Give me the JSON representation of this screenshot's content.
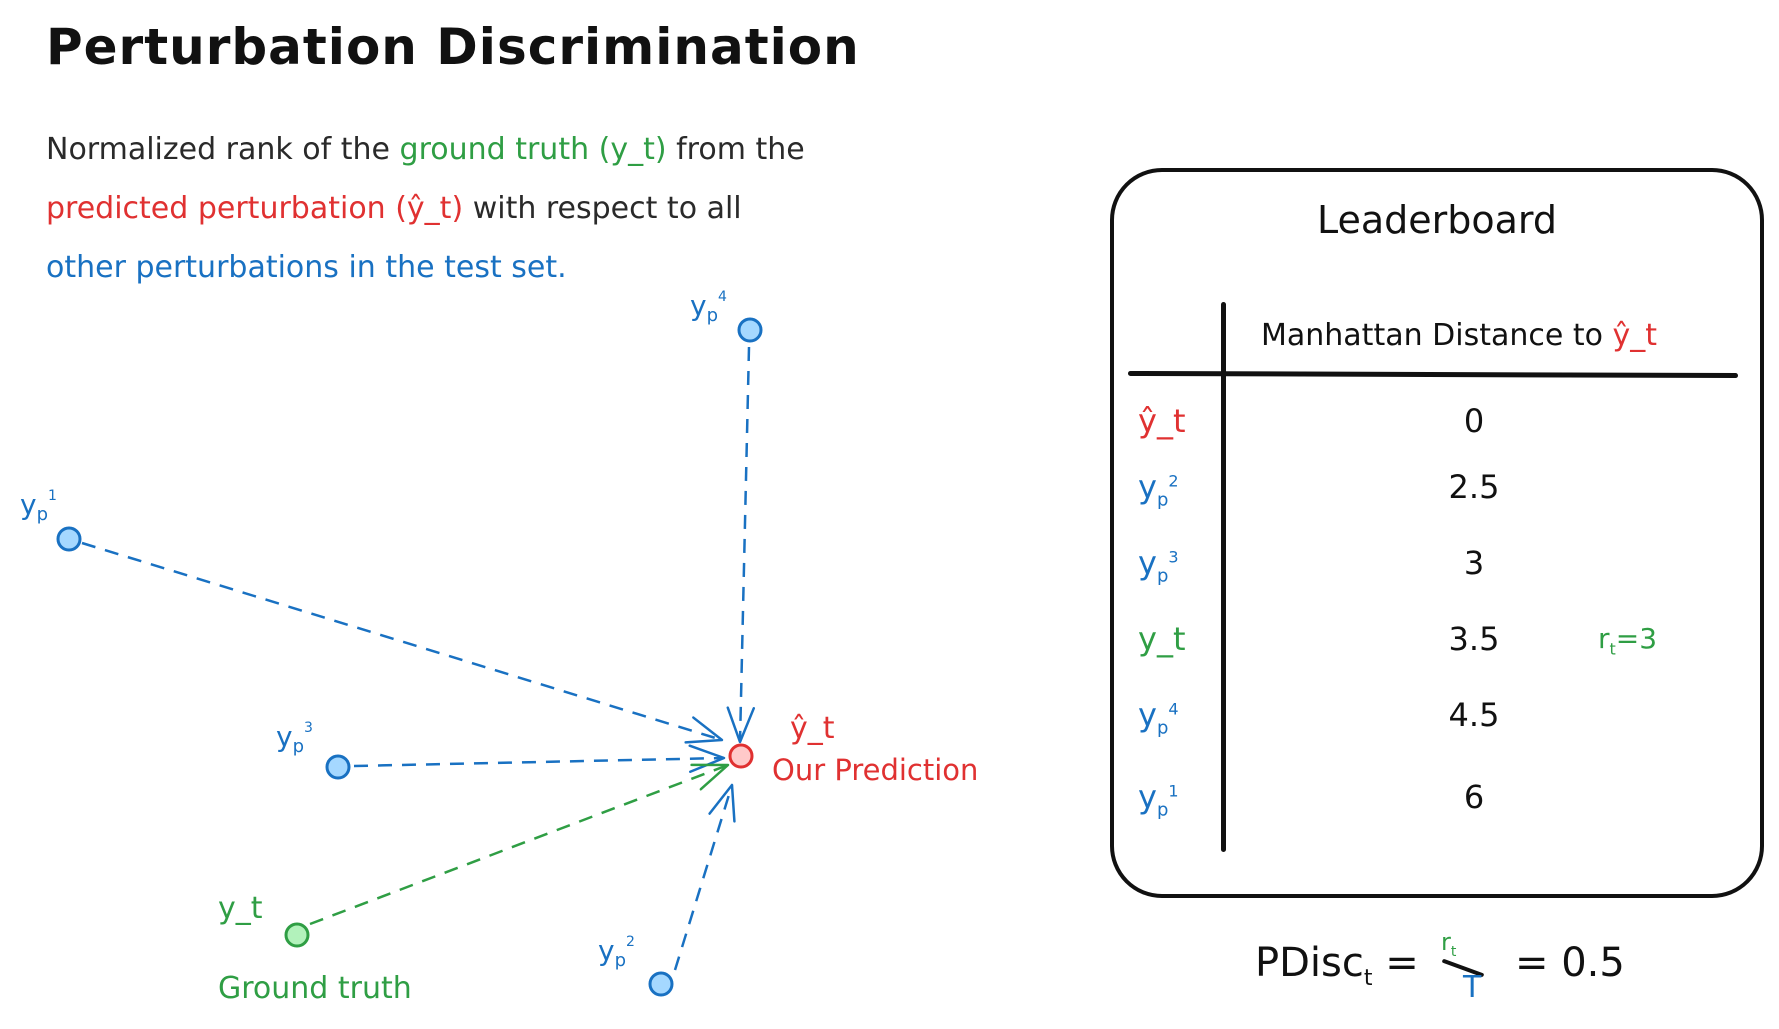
{
  "title": "Perturbation Discrimination",
  "description": {
    "line1_a": "Normalized rank of the ",
    "line1_b": "ground truth (y_t)",
    "line1_c": " from the",
    "line2_a": "predicted perturbation (ŷ_t)",
    "line2_b": " with respect to all",
    "line3": "other perturbations in the test set."
  },
  "colors": {
    "green": "#2f9e44",
    "red": "#e03131",
    "blue": "#1971c2",
    "blue_fill": "#a5d8ff",
    "green_fill": "#b2f2bb",
    "red_fill": "#ffc9c9"
  },
  "diagram": {
    "prediction_symbol": "ŷ_t",
    "prediction_caption": "Our Prediction",
    "ground_truth_symbol": "y_t",
    "ground_truth_caption": "Ground truth",
    "perturbations": [
      {
        "base": "y",
        "sub": "p",
        "sup": "1"
      },
      {
        "base": "y",
        "sub": "p",
        "sup": "2"
      },
      {
        "base": "y",
        "sub": "p",
        "sup": "3"
      },
      {
        "base": "y",
        "sub": "p",
        "sup": "4"
      }
    ]
  },
  "leaderboard": {
    "title": "Leaderboard",
    "column_header_text": "Manhattan Distance to ",
    "column_header_symbol": "ŷ_t",
    "rows": [
      {
        "label": "ŷ_t",
        "kind": "prediction",
        "sup": "",
        "value": "0",
        "note": ""
      },
      {
        "label": "y",
        "kind": "perturbation",
        "sub": "p",
        "sup": "2",
        "value": "2.5",
        "note": ""
      },
      {
        "label": "y",
        "kind": "perturbation",
        "sub": "p",
        "sup": "3",
        "value": "3",
        "note": ""
      },
      {
        "label": "y_t",
        "kind": "ground_truth",
        "sup": "",
        "value": "3.5",
        "note_base": "r",
        "note_sub": "t",
        "note_rest": "=3"
      },
      {
        "label": "y",
        "kind": "perturbation",
        "sub": "p",
        "sup": "4",
        "value": "4.5",
        "note": ""
      },
      {
        "label": "y",
        "kind": "perturbation",
        "sub": "p",
        "sup": "1",
        "value": "6",
        "note": ""
      }
    ]
  },
  "formula": {
    "lhs_base": "PDisc",
    "lhs_sub": "t",
    "equals": "=",
    "numerator_base": "r",
    "numerator_sub": "t",
    "denominator": "T",
    "result": "= 0.5"
  }
}
